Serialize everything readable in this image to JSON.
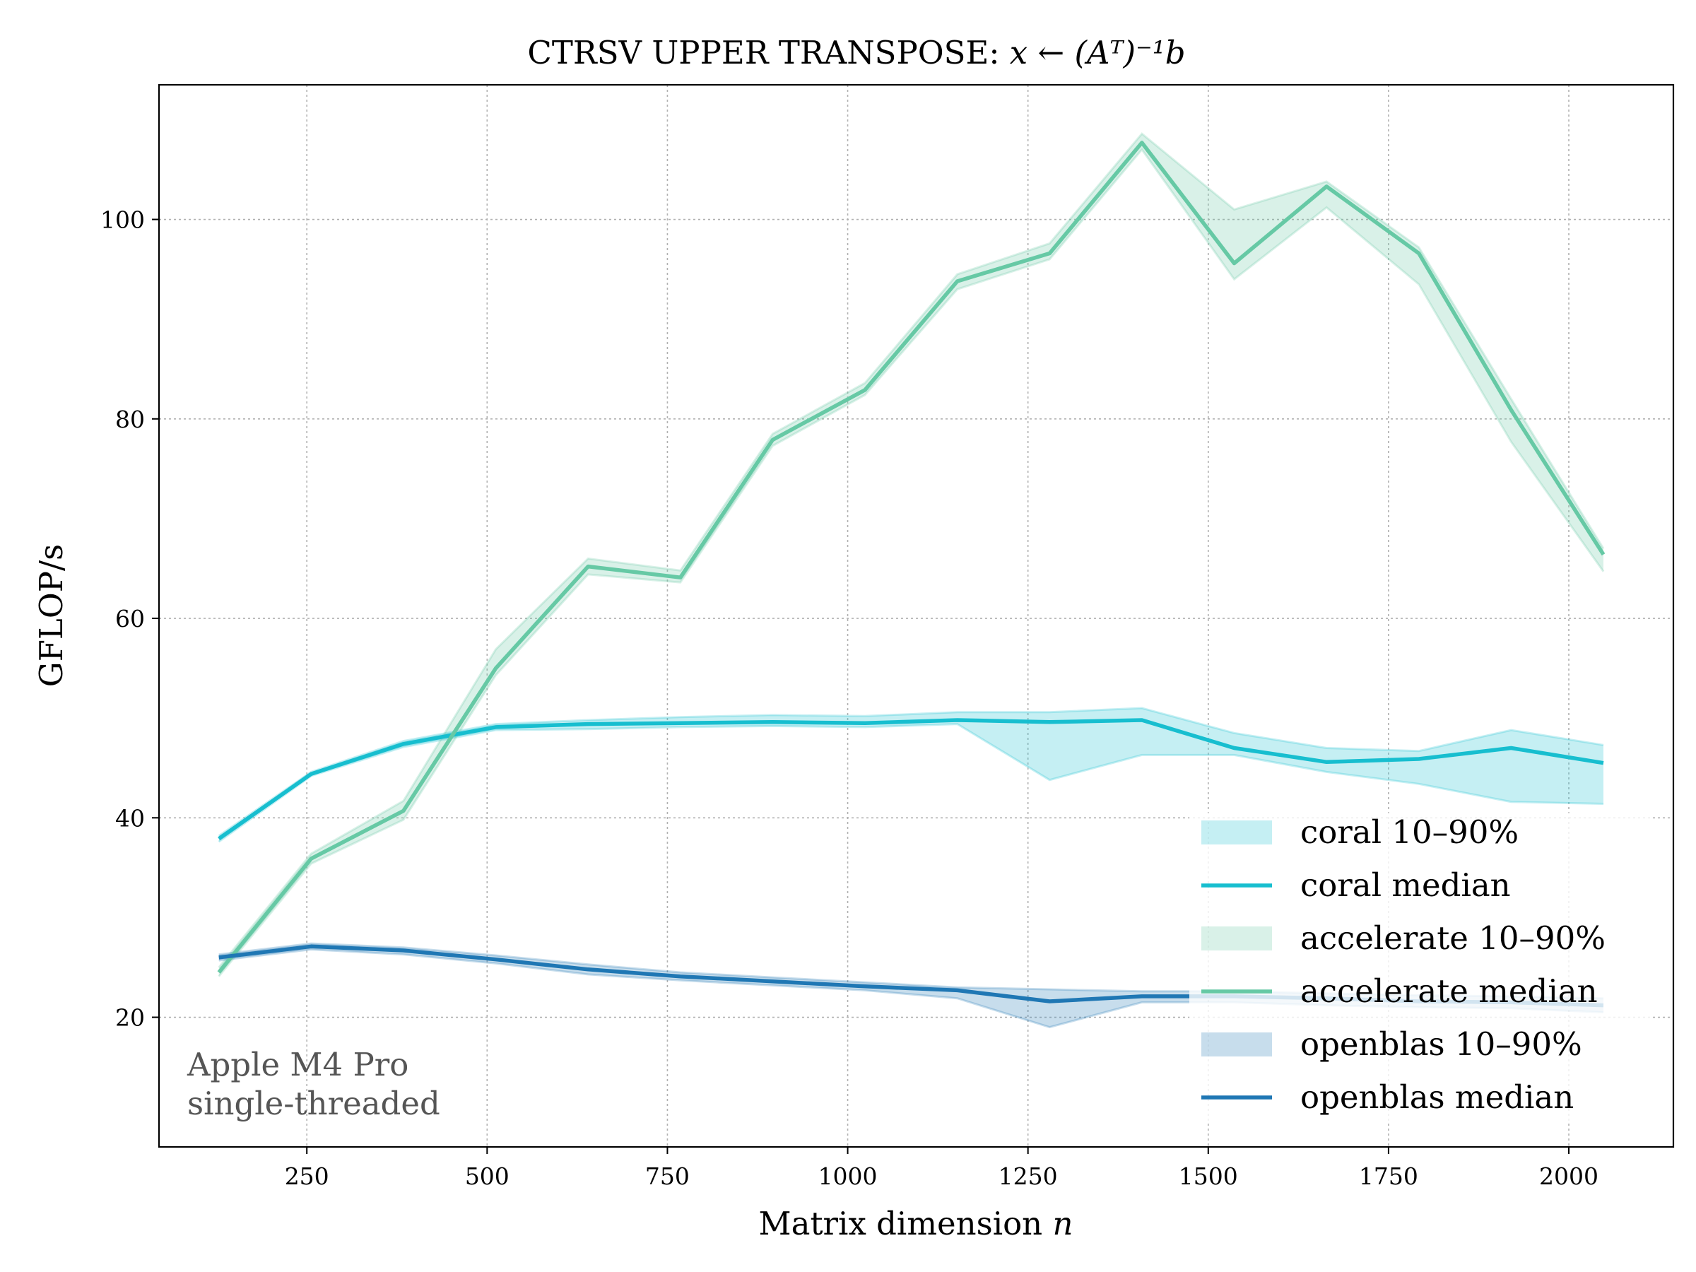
{
  "chart_data": {
    "type": "line",
    "title_prefix": "CTRSV UPPER TRANSPOSE: ",
    "title_math": "x ← (Aᵀ)⁻¹b",
    "xlabel_prefix": "Matrix dimension ",
    "xlabel_var": "n",
    "ylabel": "GFLOP/s",
    "xlim": [
      45,
      2145
    ],
    "ylim": [
      7,
      113.5
    ],
    "xticks": [
      250,
      500,
      750,
      1000,
      1250,
      1500,
      1750,
      2000
    ],
    "yticks": [
      20,
      40,
      60,
      80,
      100
    ],
    "grid": true,
    "legend_position": "lower-right",
    "annotation": [
      "Apple M4 Pro",
      "single-threaded"
    ],
    "x": [
      128,
      256,
      384,
      512,
      640,
      768,
      896,
      1024,
      1152,
      1280,
      1408,
      1536,
      1664,
      1792,
      1920,
      2048
    ],
    "series": [
      {
        "name": "coral",
        "color": "#17becf",
        "median": [
          37.9,
          44.4,
          47.4,
          49.1,
          49.4,
          49.5,
          49.6,
          49.5,
          49.8,
          49.6,
          49.8,
          47.0,
          45.6,
          45.9,
          47.0,
          45.5
        ],
        "p10": [
          37.6,
          44.2,
          47.1,
          48.8,
          48.9,
          49.1,
          49.2,
          49.1,
          49.4,
          43.8,
          46.3,
          46.3,
          44.6,
          43.4,
          41.6,
          41.4
        ],
        "p90": [
          38.2,
          44.6,
          47.7,
          49.4,
          49.8,
          50.1,
          50.3,
          50.2,
          50.6,
          50.6,
          51.0,
          48.5,
          47.0,
          46.7,
          48.8,
          47.3
        ]
      },
      {
        "name": "accelerate",
        "color": "#66c9a5",
        "median": [
          24.5,
          35.9,
          40.7,
          55.0,
          65.2,
          64.1,
          77.9,
          82.9,
          93.8,
          96.6,
          107.7,
          95.6,
          103.3,
          96.6,
          80.9,
          66.4
        ],
        "p10": [
          24.1,
          35.4,
          39.8,
          54.3,
          64.4,
          63.6,
          77.3,
          82.4,
          93.0,
          96.0,
          107.0,
          94.0,
          101.2,
          93.5,
          77.7,
          64.7
        ],
        "p90": [
          25.0,
          36.4,
          41.7,
          56.9,
          66.0,
          64.8,
          78.5,
          83.6,
          94.5,
          97.6,
          108.6,
          101.0,
          103.8,
          97.2,
          82.0,
          67.0
        ]
      },
      {
        "name": "openblas",
        "color": "#1f77b4",
        "median": [
          26.0,
          27.1,
          26.7,
          25.8,
          24.8,
          24.1,
          23.6,
          23.1,
          22.7,
          21.6,
          22.1,
          22.1,
          21.9,
          21.6,
          21.5,
          21.2
        ],
        "p10": [
          25.7,
          26.8,
          26.3,
          25.4,
          24.3,
          23.7,
          23.2,
          22.7,
          21.9,
          19.0,
          21.5,
          21.5,
          21.2,
          21.0,
          20.9,
          20.5
        ],
        "p90": [
          26.3,
          27.4,
          27.0,
          26.2,
          25.3,
          24.5,
          24.0,
          23.5,
          23.0,
          22.8,
          22.6,
          22.6,
          22.4,
          22.2,
          22.1,
          21.9
        ]
      }
    ],
    "legend": [
      {
        "label": "coral 10–90%",
        "series": "coral",
        "kind": "band"
      },
      {
        "label": "coral median",
        "series": "coral",
        "kind": "line"
      },
      {
        "label": "accelerate 10–90%",
        "series": "accelerate",
        "kind": "band"
      },
      {
        "label": "accelerate median",
        "series": "accelerate",
        "kind": "line"
      },
      {
        "label": "openblas 10–90%",
        "series": "openblas",
        "kind": "band"
      },
      {
        "label": "openblas median",
        "series": "openblas",
        "kind": "line"
      }
    ]
  }
}
